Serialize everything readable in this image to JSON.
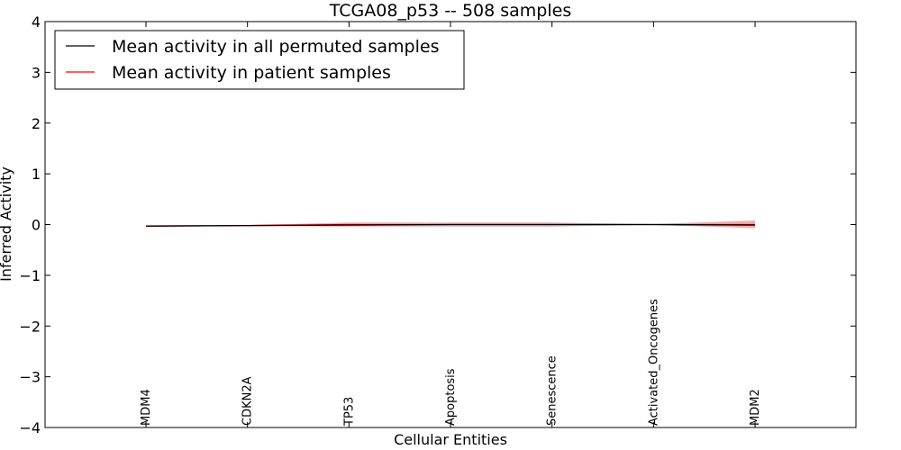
{
  "chart_data": {
    "type": "line",
    "title": "TCGA08_p53 -- 508 samples",
    "xlabel": "Cellular Entities",
    "ylabel": "Inferred Activity",
    "ylim": [
      -4,
      4
    ],
    "yticks": [
      4,
      3,
      2,
      1,
      0,
      -1,
      -2,
      -3,
      -4
    ],
    "ytick_labels": [
      "4",
      "3",
      "2",
      "1",
      "0",
      "−1",
      "−2",
      "−3",
      "−4"
    ],
    "categories": [
      "MDM4",
      "CDKN2A",
      "TP53",
      "Apoptosis",
      "Senescence",
      "Activated_Oncogenes",
      "MDM2"
    ],
    "legend_position": "top-left",
    "series": [
      {
        "name": "Mean activity in all permuted samples",
        "color": "#000000",
        "values": [
          -0.03,
          -0.02,
          -0.01,
          0.0,
          0.0,
          0.0,
          -0.01
        ]
      },
      {
        "name": "Mean activity in patient samples",
        "color": "#ff0000",
        "band_color": "#e88080",
        "values": [
          -0.03,
          -0.02,
          0.0,
          0.0,
          0.0,
          0.0,
          0.0
        ],
        "lower": [
          -0.04,
          -0.03,
          -0.04,
          -0.04,
          -0.04,
          -0.01,
          -0.07
        ],
        "upper": [
          -0.02,
          -0.01,
          0.04,
          0.04,
          0.04,
          0.01,
          0.08
        ]
      }
    ]
  }
}
